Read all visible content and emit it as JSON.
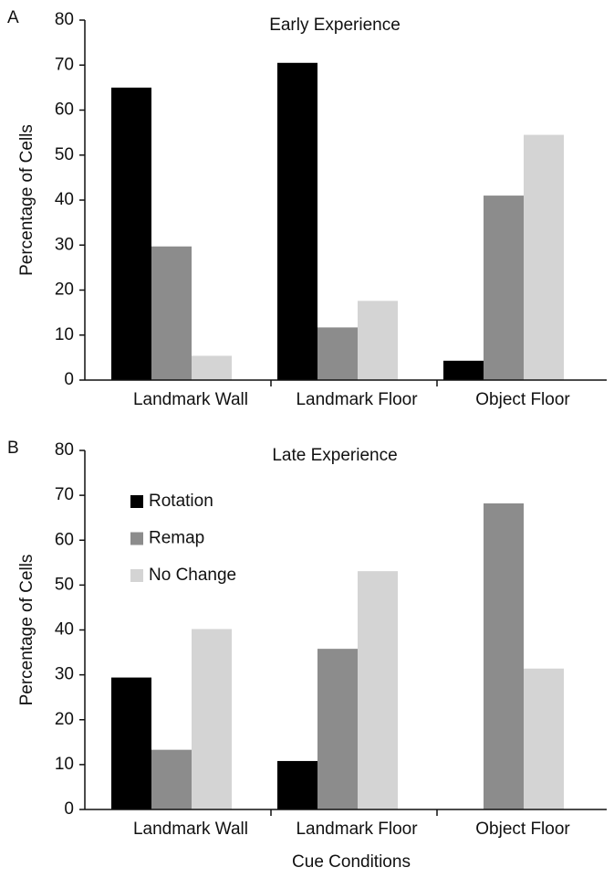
{
  "chart_data": [
    {
      "type": "bar",
      "panel_label": "A",
      "title": "Early Experience",
      "y_label": "Percentage of Cells",
      "categories": [
        "Landmark Wall",
        "Landmark Floor",
        "Object Floor"
      ],
      "series": [
        {
          "name": "Rotation",
          "color": "#000000",
          "values": [
            65,
            70.5,
            4.3
          ]
        },
        {
          "name": "Remap",
          "color": "#8c8c8c",
          "values": [
            29.7,
            11.7,
            41
          ]
        },
        {
          "name": "No Change",
          "color": "#d4d4d4",
          "values": [
            5.4,
            17.6,
            54.5
          ]
        }
      ],
      "ylim": [
        0,
        80
      ],
      "yticks": [
        0,
        10,
        20,
        30,
        40,
        50,
        60,
        70,
        80
      ],
      "legend": false
    },
    {
      "type": "bar",
      "panel_label": "B",
      "title": "Late Experience",
      "y_label": "Percentage of Cells",
      "x_label": "Cue Conditions",
      "categories": [
        "Landmark Wall",
        "Landmark Floor",
        "Object Floor"
      ],
      "series": [
        {
          "name": "Rotation",
          "color": "#000000",
          "values": [
            29.4,
            10.8,
            0
          ]
        },
        {
          "name": "Remap",
          "color": "#8c8c8c",
          "values": [
            13.3,
            35.8,
            68.2
          ]
        },
        {
          "name": "No Change",
          "color": "#d4d4d4",
          "values": [
            40.2,
            53.1,
            31.4
          ]
        }
      ],
      "ylim": [
        0,
        80
      ],
      "yticks": [
        0,
        10,
        20,
        30,
        40,
        50,
        60,
        70,
        80
      ],
      "legend": true
    }
  ]
}
